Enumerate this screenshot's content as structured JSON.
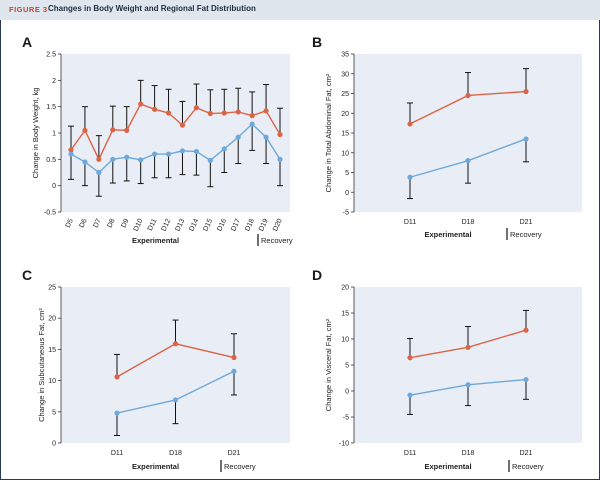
{
  "figure": {
    "number": "FIGURE 3",
    "title": "Changes in Body Weight and Regional Fat Distribution"
  },
  "colors": {
    "experimental_series": "#dc6446",
    "recovery_series": "#6fa8d9",
    "error_bar": "#111111",
    "plot_bg": "#e9eef6"
  },
  "chart_data": [
    {
      "panel": "A",
      "type": "line",
      "ylabel": "Change in Body Weight, kg",
      "xlabel": "Experimental",
      "phase_label": "Recovery",
      "ylim": [
        -0.5,
        2.5
      ],
      "yticks": [
        -0.5,
        0,
        0.5,
        1,
        1.5,
        2,
        2.5
      ],
      "categories": [
        "D5",
        "D6",
        "D7",
        "D8",
        "D9",
        "D10",
        "D11",
        "D12",
        "D13",
        "D14",
        "D15",
        "D16",
        "D17",
        "D18",
        "D19",
        "D20"
      ],
      "series": [
        {
          "values": [
            0.68,
            1.05,
            0.5,
            1.06,
            1.05,
            1.55,
            1.45,
            1.38,
            1.15,
            1.48,
            1.37,
            1.38,
            1.4,
            1.33,
            1.42,
            0.97
          ],
          "error": [
            0.45,
            0.45,
            0.45,
            0.45,
            0.45,
            0.45,
            0.45,
            0.45,
            0.45,
            0.45,
            0.45,
            0.45,
            0.45,
            0.45,
            0.5,
            0.5
          ],
          "bar_dir": "up"
        },
        {
          "values": [
            0.6,
            0.45,
            0.25,
            0.5,
            0.54,
            0.49,
            0.6,
            0.6,
            0.66,
            0.65,
            0.48,
            0.7,
            0.92,
            1.17,
            0.92,
            0.5
          ],
          "error": [
            0.48,
            0.45,
            0.45,
            0.45,
            0.45,
            0.45,
            0.45,
            0.45,
            0.45,
            0.45,
            0.5,
            0.45,
            0.5,
            0.5,
            0.5,
            0.5
          ],
          "bar_dir": "down"
        }
      ]
    },
    {
      "panel": "B",
      "type": "line",
      "ylabel": "Change in Total Abdominal Fat, cm²",
      "xlabel": "Experimental",
      "phase_label": "Recovery",
      "ylim": [
        -5,
        35
      ],
      "yticks": [
        -5,
        0,
        5,
        10,
        15,
        20,
        25,
        30,
        35
      ],
      "categories": [
        "D11",
        "D18",
        "D21"
      ],
      "series": [
        {
          "values": [
            17.3,
            24.5,
            25.5
          ],
          "error": [
            5.3,
            5.8,
            5.8
          ],
          "bar_dir": "up"
        },
        {
          "values": [
            3.8,
            8,
            13.5
          ],
          "error": [
            5.4,
            5.7,
            5.8
          ],
          "bar_dir": "down"
        }
      ]
    },
    {
      "panel": "C",
      "type": "line",
      "ylabel": "Change in Subcutaneous Fat, cm²",
      "xlabel": "Experimental",
      "phase_label": "Recovery",
      "ylim": [
        0,
        25
      ],
      "yticks": [
        0,
        5,
        10,
        15,
        20,
        25
      ],
      "categories": [
        "D11",
        "D18",
        "D21"
      ],
      "series": [
        {
          "values": [
            10.6,
            15.9,
            13.7
          ],
          "error": [
            3.6,
            3.8,
            3.8
          ],
          "bar_dir": "up"
        },
        {
          "values": [
            4.8,
            6.9,
            11.5
          ],
          "error": [
            3.6,
            3.8,
            3.8
          ],
          "bar_dir": "down"
        }
      ]
    },
    {
      "panel": "D",
      "type": "line",
      "ylabel": "Change in Visceral Fat, cm²",
      "xlabel": "Experimental",
      "phase_label": "Recovery",
      "ylim": [
        -10,
        20
      ],
      "yticks": [
        -10,
        -5,
        0,
        5,
        10,
        15,
        20
      ],
      "categories": [
        "D11",
        "D18",
        "D21"
      ],
      "series": [
        {
          "values": [
            6.4,
            8.4,
            11.7
          ],
          "error": [
            3.7,
            4,
            3.8
          ],
          "bar_dir": "up"
        },
        {
          "values": [
            -0.8,
            1.2,
            2.2
          ],
          "error": [
            3.7,
            4,
            3.8
          ],
          "bar_dir": "down"
        }
      ]
    }
  ]
}
